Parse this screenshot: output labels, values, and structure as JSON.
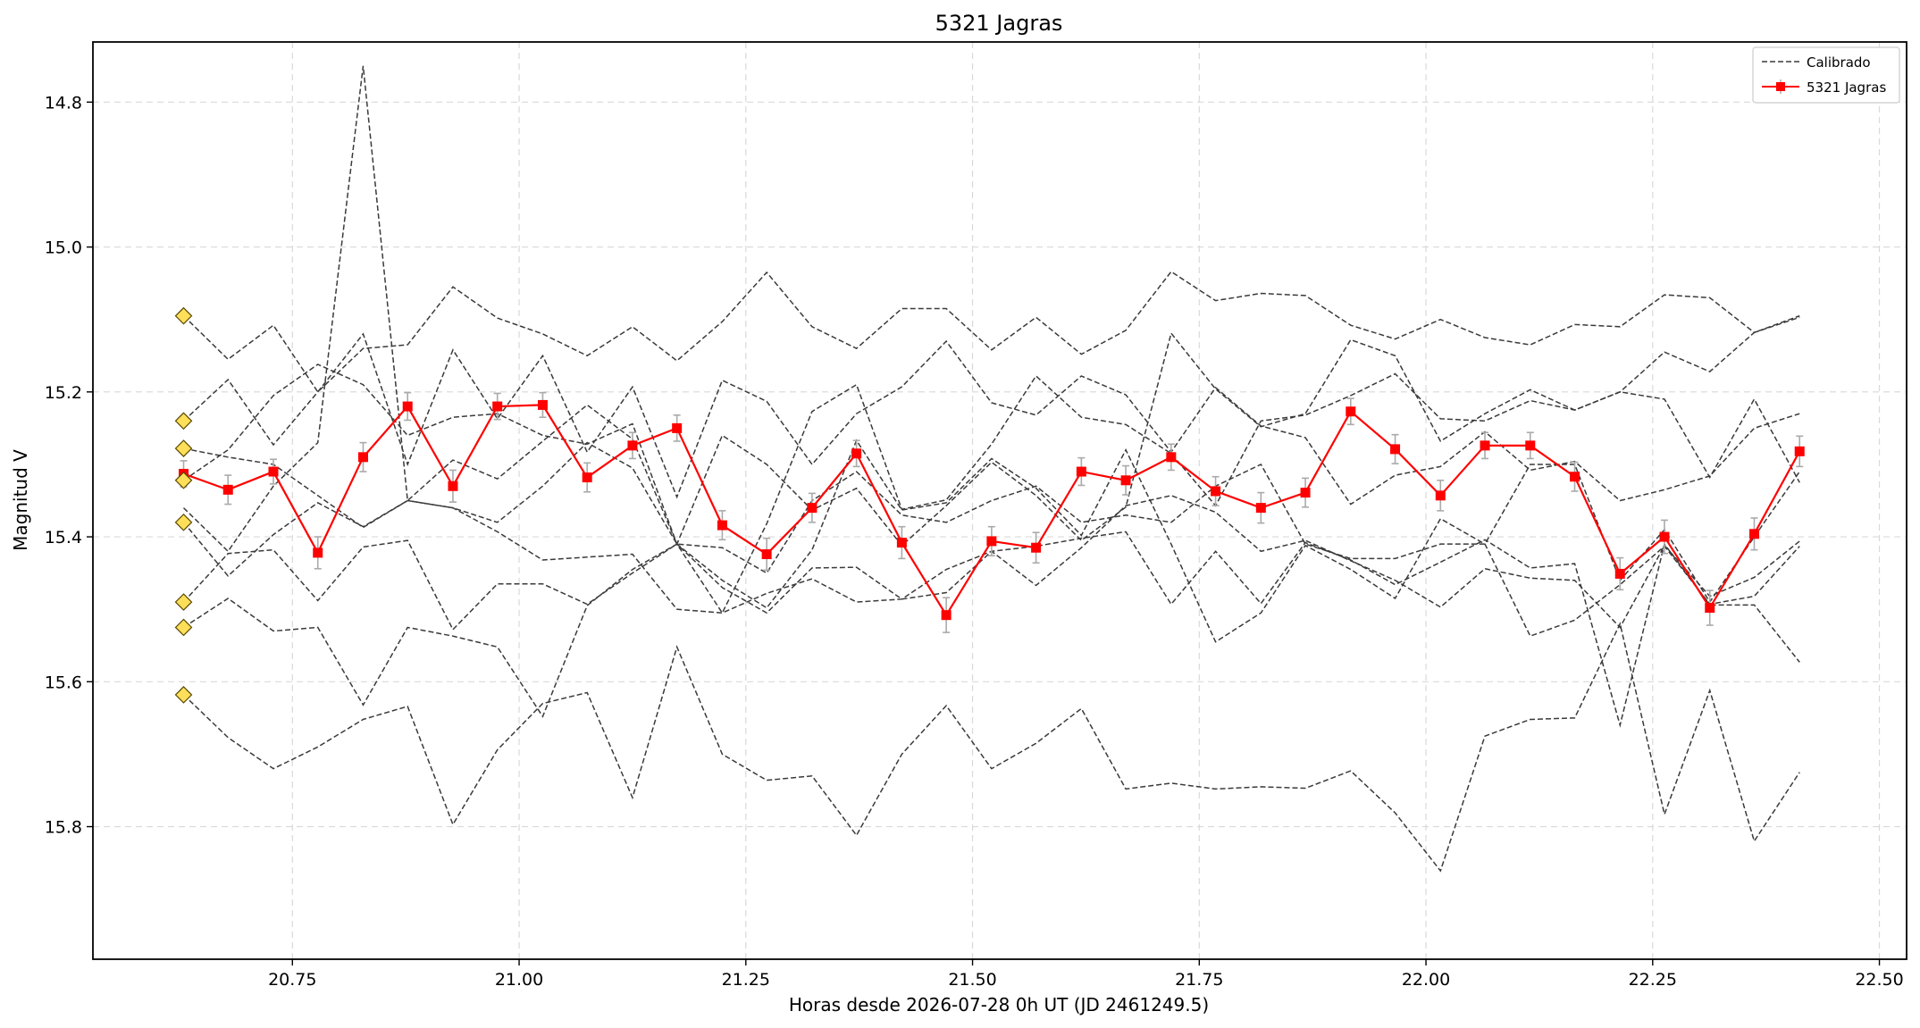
{
  "chart_data": {
    "type": "line",
    "title": "5321 Jagras",
    "xlabel": "Horas desde 2026-07-28 0h UT (JD 2461249.5)",
    "ylabel": "Magnitud V",
    "xlim": [
      20.53,
      22.53
    ],
    "ylim": [
      15.983,
      14.717
    ],
    "y_inverted": true,
    "xticks": [
      "20.75",
      "21.00",
      "21.25",
      "21.50",
      "21.75",
      "22.00",
      "22.25",
      "22.50"
    ],
    "xtick_values": [
      20.75,
      21.0,
      21.25,
      21.5,
      21.75,
      22.0,
      22.25,
      22.5
    ],
    "yticks": [
      "14.8",
      "15.0",
      "15.2",
      "15.4",
      "15.6",
      "15.8"
    ],
    "ytick_values": [
      14.8,
      15.0,
      15.2,
      15.4,
      15.6,
      15.8
    ],
    "grid": true,
    "legend_position": "top-right",
    "legend": [
      "Calibrado",
      "5321 Jagras"
    ],
    "x": [
      20.63,
      20.679,
      20.729,
      20.778,
      20.828,
      20.877,
      20.927,
      20.976,
      21.026,
      21.075,
      21.125,
      21.174,
      21.224,
      21.273,
      21.323,
      21.372,
      21.422,
      21.471,
      21.521,
      21.57,
      21.62,
      21.669,
      21.719,
      21.768,
      21.818,
      21.867,
      21.917,
      21.966,
      22.016,
      22.065,
      22.115,
      22.164,
      22.214,
      22.263,
      22.313,
      22.362,
      22.412
    ],
    "target": {
      "name": "5321 Jagras",
      "color": "#ff0000",
      "values": [
        15.313,
        15.335,
        15.31,
        15.422,
        15.29,
        15.22,
        15.33,
        15.22,
        15.218,
        15.318,
        15.274,
        15.25,
        15.384,
        15.424,
        15.36,
        15.285,
        15.408,
        15.508,
        15.406,
        15.415,
        15.31,
        15.322,
        15.29,
        15.337,
        15.36,
        15.339,
        15.227,
        15.279,
        15.343,
        15.274,
        15.274,
        15.317,
        15.451,
        15.4,
        15.498,
        15.396,
        15.282
      ],
      "errors": [
        0.018,
        0.02,
        0.017,
        0.022,
        0.02,
        0.019,
        0.022,
        0.018,
        0.017,
        0.02,
        0.018,
        0.018,
        0.02,
        0.022,
        0.02,
        0.018,
        0.022,
        0.024,
        0.02,
        0.021,
        0.019,
        0.02,
        0.018,
        0.02,
        0.021,
        0.02,
        0.018,
        0.02,
        0.021,
        0.018,
        0.018,
        0.02,
        0.022,
        0.023,
        0.024,
        0.022,
        0.021
      ]
    },
    "comparison_series": [
      {
        "values": [
          15.095,
          15.155,
          15.108,
          15.2,
          15.14,
          15.135,
          15.055,
          15.098,
          15.12,
          15.15,
          15.11,
          15.157,
          15.103,
          15.035,
          15.11,
          15.14,
          15.085,
          15.085,
          15.142,
          15.097,
          15.148,
          15.115,
          15.034,
          15.074,
          15.064,
          15.067,
          15.108,
          15.127,
          15.1,
          15.125,
          15.135,
          15.107,
          15.11,
          15.066,
          15.07,
          15.118,
          15.097
        ]
      },
      {
        "values": [
          15.24,
          15.183,
          15.273,
          15.2,
          15.12,
          15.3,
          15.142,
          15.237,
          15.15,
          15.283,
          15.193,
          15.345,
          15.184,
          15.213,
          15.3,
          15.23,
          15.193,
          15.13,
          15.215,
          15.232,
          15.178,
          15.204,
          15.283,
          15.194,
          15.247,
          15.263,
          15.355,
          15.315,
          15.303,
          15.255,
          15.308,
          15.296,
          15.35,
          15.335,
          15.316,
          15.25,
          15.23
        ]
      },
      {
        "values": [
          15.278,
          15.29,
          15.3,
          15.343,
          15.387,
          15.35,
          15.36,
          15.393,
          15.432,
          15.428,
          15.424,
          15.5,
          15.505,
          15.478,
          15.458,
          15.49,
          15.486,
          15.445,
          15.42,
          15.413,
          15.402,
          15.393,
          15.493,
          15.42,
          15.492,
          15.408,
          15.432,
          15.466,
          15.435,
          15.404,
          15.443,
          15.437,
          15.66,
          15.41,
          15.494,
          15.494,
          15.573
        ]
      },
      {
        "values": [
          15.322,
          15.28,
          15.205,
          15.162,
          15.19,
          15.26,
          15.235,
          15.23,
          15.26,
          15.272,
          15.244,
          15.41,
          15.47,
          15.505,
          15.443,
          15.442,
          15.486,
          15.477,
          15.42,
          15.467,
          15.415,
          15.357,
          15.343,
          15.366,
          15.42,
          15.405,
          15.433,
          15.46,
          15.497,
          15.444,
          15.457,
          15.46,
          15.525,
          15.412,
          15.482,
          15.456,
          15.406
        ]
      },
      {
        "values": [
          15.38,
          15.454,
          15.397,
          15.353,
          15.386,
          15.35,
          15.294,
          15.32,
          15.268,
          15.218,
          15.265,
          15.41,
          15.26,
          15.3,
          15.363,
          15.333,
          15.412,
          15.357,
          15.297,
          15.343,
          15.405,
          15.359,
          15.119,
          15.196,
          15.248,
          15.23,
          15.128,
          15.15,
          15.268,
          15.23,
          15.197,
          15.225,
          15.2,
          15.21,
          15.318,
          15.21,
          15.325
        ]
      },
      {
        "values": [
          15.49,
          15.423,
          15.418,
          15.488,
          15.414,
          15.405,
          15.528,
          15.465,
          15.465,
          15.493,
          15.45,
          15.41,
          15.46,
          15.498,
          15.418,
          15.267,
          15.363,
          15.353,
          15.292,
          15.333,
          15.398,
          15.28,
          15.41,
          15.545,
          15.505,
          15.412,
          15.445,
          15.485,
          15.375,
          15.41,
          15.537,
          15.515,
          15.466,
          15.413,
          15.493,
          15.482,
          15.413
        ]
      },
      {
        "values": [
          15.525,
          15.485,
          15.53,
          15.525,
          15.632,
          15.525,
          15.537,
          15.552,
          15.648,
          15.495,
          15.445,
          15.41,
          15.505,
          15.382,
          15.227,
          15.19,
          15.362,
          15.349,
          15.272,
          15.178,
          15.235,
          15.245,
          15.285,
          15.357,
          15.24,
          15.232,
          15.205,
          15.175,
          15.237,
          15.24,
          15.212,
          15.225,
          15.2,
          15.145,
          15.172,
          15.118,
          15.095
        ]
      },
      {
        "values": [
          15.618,
          15.677,
          15.72,
          15.69,
          15.652,
          15.634,
          15.797,
          15.694,
          15.63,
          15.615,
          15.76,
          15.552,
          15.7,
          15.736,
          15.73,
          15.812,
          15.7,
          15.633,
          15.72,
          15.685,
          15.637,
          15.748,
          15.74,
          15.748,
          15.745,
          15.747,
          15.723,
          15.781,
          15.861,
          15.675,
          15.652,
          15.65,
          15.52,
          15.783,
          15.612,
          15.82,
          15.725
        ]
      },
      {
        "values": [
          15.36,
          15.42,
          15.33,
          15.27,
          14.75,
          15.35,
          15.36,
          15.38,
          15.33,
          15.27,
          15.305,
          15.41,
          15.415,
          15.45,
          15.35,
          15.31,
          15.37,
          15.38,
          15.35,
          15.33,
          15.38,
          15.37,
          15.38,
          15.33,
          15.3,
          15.41,
          15.43,
          15.43,
          15.41,
          15.41,
          15.3,
          15.3,
          15.46,
          15.39,
          15.49,
          15.4,
          15.31
        ]
      }
    ],
    "reference_markers": [
      15.095,
      15.24,
      15.278,
      15.322,
      15.38,
      15.49,
      15.525,
      15.618
    ]
  }
}
